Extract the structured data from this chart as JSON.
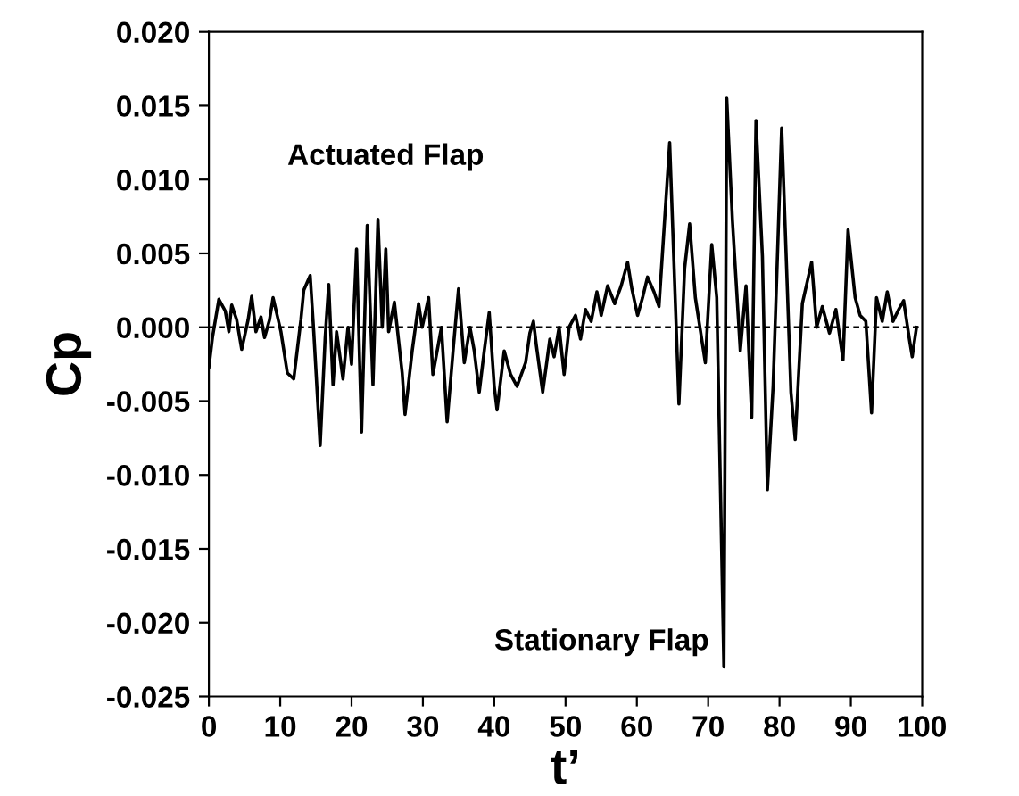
{
  "chart_data": {
    "type": "line",
    "xlabel": "t’",
    "ylabel": "Cp",
    "annotations": [
      "Actuated Flap",
      "Stationary Flap"
    ],
    "series": [
      {
        "color": "#000000",
        "x": [
          0,
          0.5,
          1.4,
          2.3,
          2.8,
          3.2,
          3.9,
          4.6,
          5.5,
          6.0,
          6.6,
          7.3,
          7.8,
          8.5,
          9.0,
          10.1,
          11.0,
          11.9,
          12.9,
          13.3,
          14.2,
          14.7,
          15.6,
          16.3,
          16.8,
          17.4,
          17.9,
          18.8,
          19.5,
          20.0,
          20.7,
          21.4,
          22.2,
          23.0,
          23.7,
          24.3,
          24.8,
          25.2,
          26.0,
          27.1,
          27.5,
          28.5,
          29.4,
          29.9,
          30.8,
          31.4,
          32.6,
          33.4,
          34.3,
          35.0,
          35.8,
          36.6,
          37.2,
          37.9,
          38.6,
          39.3,
          40.0,
          40.4,
          41.4,
          42.3,
          43.2,
          44.4,
          45.0,
          45.5,
          45.9,
          46.8,
          47.8,
          48.4,
          49.1,
          49.8,
          50.5,
          51.4,
          52.1,
          52.8,
          53.6,
          54.4,
          55.0,
          55.9,
          56.9,
          57.8,
          58.7,
          59.3,
          60.1,
          60.8,
          61.5,
          62.4,
          63.1,
          64.6,
          65.9,
          66.7,
          67.4,
          68.2,
          69.6,
          70.5,
          71.2,
          72.2,
          72.6,
          73.4,
          74.5,
          75.3,
          76.1,
          76.7,
          77.6,
          78.3,
          79.1,
          80.3,
          81.6,
          82.2,
          83.2,
          84.5,
          85.2,
          86.0,
          87.0,
          87.9,
          88.9,
          89.6,
          90.6,
          91.3,
          92.1,
          92.9,
          93.6,
          94.4,
          95.1,
          95.9,
          96.7,
          97.4,
          98.2,
          98.6,
          99.2
        ],
        "values": [
          -0.0027,
          -0.0007,
          0.0019,
          0.0011,
          -0.0003,
          0.0015,
          0.0005,
          -0.0015,
          0.0005,
          0.0021,
          -0.0003,
          0.0007,
          -0.0007,
          0.0005,
          0.002,
          -0.0003,
          -0.0031,
          -0.0035,
          0.0005,
          0.0025,
          0.0035,
          -0.0003,
          -0.008,
          -0.0007,
          0.0029,
          -0.0039,
          -0.0003,
          -0.0035,
          0.0,
          -0.0025,
          0.0053,
          -0.0071,
          0.0069,
          -0.0039,
          0.0073,
          0.0,
          0.0053,
          -0.0003,
          0.0017,
          -0.0031,
          -0.0059,
          -0.0016,
          0.0016,
          0.0,
          0.002,
          -0.0032,
          0.0,
          -0.0064,
          -0.0012,
          0.0026,
          -0.0024,
          0.0,
          -0.0016,
          -0.0044,
          -0.0016,
          0.001,
          -0.004,
          -0.0056,
          -0.0016,
          -0.0032,
          -0.004,
          -0.0024,
          -0.0004,
          0.0004,
          -0.0012,
          -0.0044,
          -0.0008,
          -0.002,
          0.0,
          -0.0032,
          0.0,
          0.0008,
          -0.0008,
          0.0012,
          0.0004,
          0.0024,
          0.0008,
          0.0028,
          0.0016,
          0.0028,
          0.0044,
          0.0026,
          0.0008,
          0.002,
          0.0034,
          0.0024,
          0.0014,
          0.0125,
          -0.0052,
          0.004,
          0.007,
          0.002,
          -0.0024,
          0.0056,
          0.002,
          -0.023,
          0.0155,
          0.0072,
          -0.0016,
          0.0028,
          -0.0061,
          0.014,
          0.0048,
          -0.011,
          -0.004,
          0.0135,
          -0.0044,
          -0.0076,
          0.0016,
          0.0044,
          0.0,
          0.0014,
          -0.0004,
          0.0012,
          -0.0022,
          0.0066,
          0.002,
          0.0008,
          0.0004,
          -0.0058,
          0.002,
          0.0004,
          0.0024,
          0.0004,
          0.0012,
          0.0018,
          -0.0008,
          -0.002,
          0.0
        ]
      }
    ],
    "ref_lines": [
      {
        "axis": "y",
        "value": 0,
        "color": "#000000",
        "line_style": "dashed"
      }
    ],
    "xlim": [
      0,
      100
    ],
    "xticks": [
      0,
      10,
      20,
      30,
      40,
      50,
      60,
      70,
      80,
      90,
      100
    ],
    "ylim": [
      -0.025,
      0.02
    ],
    "yticks": [
      {
        "value": 0.02,
        "label": "0.020"
      },
      {
        "value": 0.015,
        "label": "0.015"
      },
      {
        "value": 0.01,
        "label": "0.010"
      },
      {
        "value": 0.005,
        "label": "0.005"
      },
      {
        "value": 0,
        "label": "0.000"
      },
      {
        "value": -0.005,
        "label": "-0.005"
      },
      {
        "value": -0.01,
        "label": "-0.010"
      },
      {
        "value": -0.015,
        "label": "-0.015"
      },
      {
        "value": -0.02,
        "label": "-0.020"
      },
      {
        "value": -0.025,
        "label": "-0.025"
      }
    ],
    "grid": false,
    "legend": false
  }
}
